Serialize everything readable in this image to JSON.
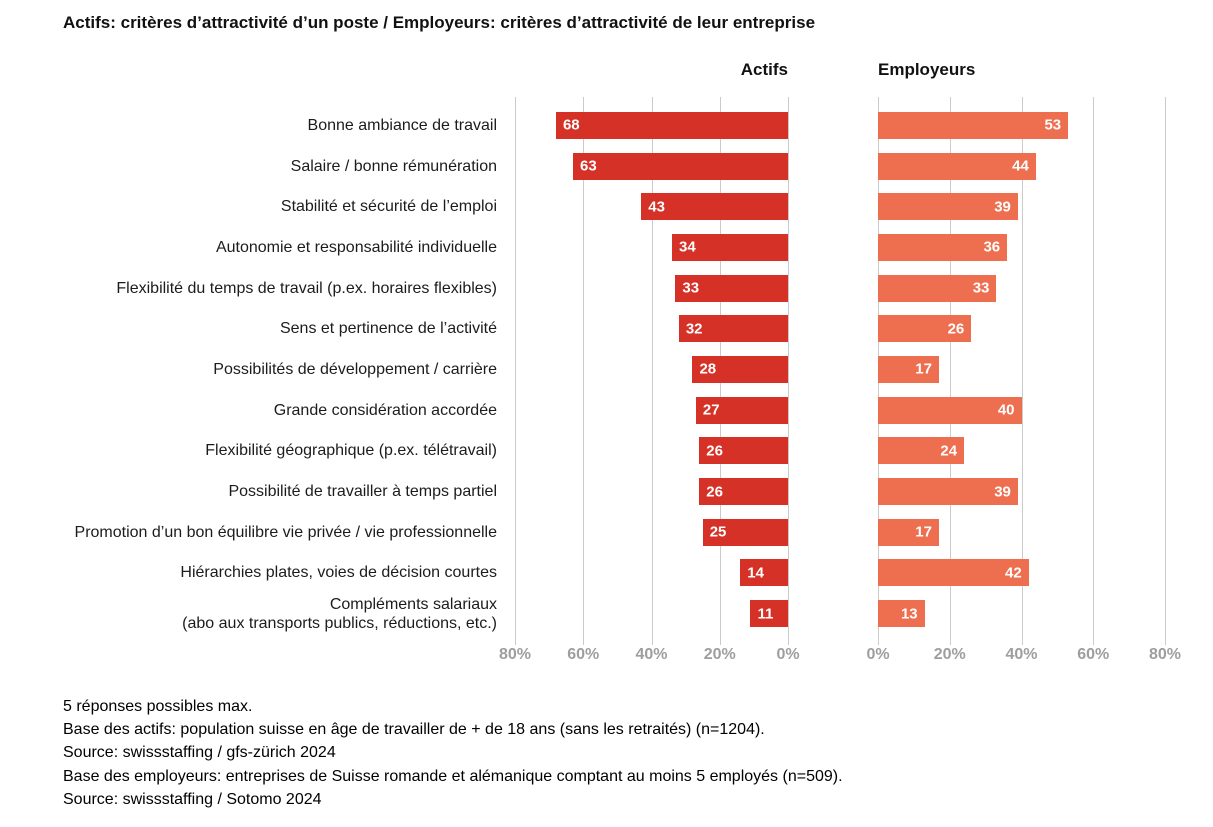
{
  "title": "Actifs: critères d’attractivité d’un poste / Employeurs: critères d’attractivité de leur entreprise",
  "chart_data": {
    "type": "bar",
    "layout": "diverging-horizontal",
    "xlim": [
      0,
      80
    ],
    "grid": true,
    "categories": [
      "Bonne ambiance de travail",
      "Salaire / bonne rémunération",
      "Stabilité et sécurité de l’emploi",
      "Autonomie et responsabilité individuelle",
      "Flexibilité du temps de travail (p.ex. horaires flexibles)",
      "Sens et pertinence de l’activité",
      "Possibilités de développement / carrière",
      "Grande considération accordée",
      "Flexibilité géographique (p.ex. télétravail)",
      "Possibilité de travailler à temps partiel",
      "Promotion d’un bon équilibre vie privée / vie professionnelle",
      "Hiérarchies plates, voies de décision courtes",
      "Compléments salariaux\n(abo aux transports publics, réductions, etc.)"
    ],
    "series": [
      {
        "name": "Actifs",
        "color": "#d63127",
        "direction": "left",
        "values": [
          68,
          63,
          43,
          34,
          33,
          32,
          28,
          27,
          26,
          26,
          25,
          14,
          11
        ]
      },
      {
        "name": "Employeurs",
        "color": "#ee6f50",
        "direction": "right",
        "values": [
          53,
          44,
          39,
          36,
          33,
          26,
          17,
          40,
          24,
          39,
          17,
          42,
          13
        ]
      }
    ],
    "axis_ticks_left": [
      "80%",
      "60%",
      "40%",
      "20%",
      "0%"
    ],
    "axis_ticks_right": [
      "0%",
      "20%",
      "40%",
      "60%",
      "80%"
    ]
  },
  "footnotes": [
    "5 réponses possibles max.",
    "Base des actifs: population suisse en âge de travailler de + de 18 ans (sans les retraités) (n=1204).",
    "Source: swissstaffing / gfs-zürich 2024",
    "Base des employeurs: entreprises de Suisse romande et alémanique comptant au moins 5 employés (n=509).",
    "Source: swissstaffing / Sotomo 2024"
  ]
}
